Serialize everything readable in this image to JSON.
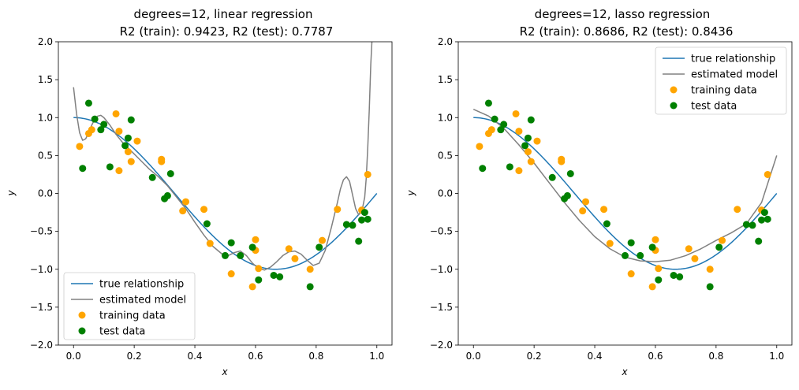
{
  "chart_data": [
    {
      "type": "scatter",
      "title_line1": "degrees=12, linear regression",
      "title_line2": "R2 (train): 0.9423, R2 (test): 0.7787",
      "xlabel": "x",
      "ylabel": "y",
      "xlim": [
        -0.05,
        1.05
      ],
      "ylim": [
        -2.0,
        2.0
      ],
      "xticks": [
        0.0,
        0.2,
        0.4,
        0.6,
        0.8,
        1.0
      ],
      "xtick_labels": [
        "0.0",
        "0.2",
        "0.4",
        "0.6",
        "0.8",
        "1.0"
      ],
      "yticks": [
        -2.0,
        -1.5,
        -1.0,
        -0.5,
        0.0,
        0.5,
        1.0,
        1.5,
        2.0
      ],
      "ytick_labels": [
        "−2.0",
        "−1.5",
        "−1.0",
        "−0.5",
        "0.0",
        "0.5",
        "1.0",
        "1.5",
        "2.0"
      ],
      "legend_position": "lower-left",
      "legend": [
        "true relationship",
        "estimated model",
        "training data",
        "test data"
      ],
      "colors": {
        "true": "#1f77b4",
        "model": "#808080",
        "train": "#ffa500",
        "test": "#008000"
      },
      "model_curve": [
        [
          0.0,
          1.4
        ],
        [
          0.01,
          1.05
        ],
        [
          0.02,
          0.8
        ],
        [
          0.03,
          0.7
        ],
        [
          0.04,
          0.72
        ],
        [
          0.05,
          0.8
        ],
        [
          0.06,
          0.9
        ],
        [
          0.07,
          0.98
        ],
        [
          0.08,
          1.02
        ],
        [
          0.09,
          1.03
        ],
        [
          0.1,
          1.0
        ],
        [
          0.12,
          0.9
        ],
        [
          0.14,
          0.78
        ],
        [
          0.16,
          0.68
        ],
        [
          0.18,
          0.6
        ],
        [
          0.2,
          0.52
        ],
        [
          0.22,
          0.44
        ],
        [
          0.25,
          0.32
        ],
        [
          0.28,
          0.22
        ],
        [
          0.31,
          0.1
        ],
        [
          0.34,
          -0.05
        ],
        [
          0.37,
          -0.2
        ],
        [
          0.4,
          -0.38
        ],
        [
          0.43,
          -0.55
        ],
        [
          0.46,
          -0.7
        ],
        [
          0.49,
          -0.8
        ],
        [
          0.51,
          -0.82
        ],
        [
          0.53,
          -0.78
        ],
        [
          0.55,
          -0.76
        ],
        [
          0.57,
          -0.82
        ],
        [
          0.59,
          -0.92
        ],
        [
          0.61,
          -0.99
        ],
        [
          0.63,
          -1.01
        ],
        [
          0.65,
          -0.97
        ],
        [
          0.67,
          -0.9
        ],
        [
          0.69,
          -0.82
        ],
        [
          0.71,
          -0.77
        ],
        [
          0.73,
          -0.76
        ],
        [
          0.75,
          -0.8
        ],
        [
          0.77,
          -0.88
        ],
        [
          0.79,
          -0.95
        ],
        [
          0.81,
          -0.92
        ],
        [
          0.83,
          -0.75
        ],
        [
          0.85,
          -0.45
        ],
        [
          0.87,
          -0.12
        ],
        [
          0.88,
          0.06
        ],
        [
          0.89,
          0.18
        ],
        [
          0.9,
          0.22
        ],
        [
          0.91,
          0.16
        ],
        [
          0.92,
          -0.02
        ],
        [
          0.93,
          -0.2
        ],
        [
          0.94,
          -0.28
        ],
        [
          0.95,
          -0.25
        ],
        [
          0.96,
          -0.05
        ],
        [
          0.965,
          0.2
        ],
        [
          0.97,
          0.6
        ],
        [
          0.975,
          1.1
        ],
        [
          0.98,
          1.7
        ],
        [
          0.985,
          2.1
        ]
      ],
      "training_data": [
        [
          0.02,
          0.62
        ],
        [
          0.05,
          0.79
        ],
        [
          0.06,
          0.84
        ],
        [
          0.14,
          1.05
        ],
        [
          0.15,
          0.3
        ],
        [
          0.15,
          0.82
        ],
        [
          0.18,
          0.55
        ],
        [
          0.19,
          0.42
        ],
        [
          0.21,
          0.69
        ],
        [
          0.29,
          0.45
        ],
        [
          0.29,
          0.42
        ],
        [
          0.37,
          -0.11
        ],
        [
          0.36,
          -0.23
        ],
        [
          0.43,
          -0.21
        ],
        [
          0.45,
          -0.66
        ],
        [
          0.52,
          -1.06
        ],
        [
          0.59,
          -1.23
        ],
        [
          0.6,
          -0.75
        ],
        [
          0.6,
          -0.61
        ],
        [
          0.61,
          -0.99
        ],
        [
          0.71,
          -0.73
        ],
        [
          0.73,
          -0.86
        ],
        [
          0.78,
          -1.0
        ],
        [
          0.82,
          -0.62
        ],
        [
          0.87,
          -0.21
        ],
        [
          0.95,
          -0.22
        ],
        [
          0.97,
          0.25
        ]
      ],
      "test_data": [
        [
          0.03,
          0.33
        ],
        [
          0.05,
          1.19
        ],
        [
          0.07,
          0.98
        ],
        [
          0.09,
          0.84
        ],
        [
          0.1,
          0.91
        ],
        [
          0.12,
          0.35
        ],
        [
          0.17,
          0.63
        ],
        [
          0.18,
          0.73
        ],
        [
          0.19,
          0.97
        ],
        [
          0.26,
          0.21
        ],
        [
          0.3,
          -0.07
        ],
        [
          0.31,
          -0.03
        ],
        [
          0.32,
          0.26
        ],
        [
          0.44,
          -0.4
        ],
        [
          0.5,
          -0.82
        ],
        [
          0.52,
          -0.65
        ],
        [
          0.55,
          -0.82
        ],
        [
          0.59,
          -0.71
        ],
        [
          0.61,
          -1.14
        ],
        [
          0.66,
          -1.08
        ],
        [
          0.68,
          -1.1
        ],
        [
          0.78,
          -1.23
        ],
        [
          0.81,
          -0.71
        ],
        [
          0.9,
          -0.41
        ],
        [
          0.92,
          -0.42
        ],
        [
          0.94,
          -0.63
        ],
        [
          0.95,
          -0.35
        ],
        [
          0.96,
          -0.25
        ],
        [
          0.97,
          -0.34
        ]
      ]
    },
    {
      "type": "scatter",
      "title_line1": "degrees=12, lasso regression",
      "title_line2": "R2 (train): 0.8686, R2 (test): 0.8436",
      "xlabel": "x",
      "ylabel": "y",
      "xlim": [
        -0.05,
        1.05
      ],
      "ylim": [
        -2.0,
        2.0
      ],
      "xticks": [
        0.0,
        0.2,
        0.4,
        0.6,
        0.8,
        1.0
      ],
      "xtick_labels": [
        "0.0",
        "0.2",
        "0.4",
        "0.6",
        "0.8",
        "1.0"
      ],
      "yticks": [
        -2.0,
        -1.5,
        -1.0,
        -0.5,
        0.0,
        0.5,
        1.0,
        1.5,
        2.0
      ],
      "ytick_labels": [
        "−2.0",
        "−1.5",
        "−1.0",
        "−0.5",
        "0.0",
        "0.5",
        "1.0",
        "1.5",
        "2.0"
      ],
      "legend_position": "upper-right",
      "legend": [
        "true relationship",
        "estimated model",
        "training data",
        "test data"
      ],
      "colors": {
        "true": "#1f77b4",
        "model": "#808080",
        "train": "#ffa500",
        "test": "#008000"
      },
      "model_curve": [
        [
          0.0,
          1.11
        ],
        [
          0.05,
          1.02
        ],
        [
          0.1,
          0.86
        ],
        [
          0.15,
          0.64
        ],
        [
          0.2,
          0.4
        ],
        [
          0.25,
          0.14
        ],
        [
          0.3,
          -0.12
        ],
        [
          0.35,
          -0.36
        ],
        [
          0.4,
          -0.57
        ],
        [
          0.45,
          -0.73
        ],
        [
          0.5,
          -0.84
        ],
        [
          0.55,
          -0.89
        ],
        [
          0.6,
          -0.9
        ],
        [
          0.65,
          -0.88
        ],
        [
          0.7,
          -0.82
        ],
        [
          0.75,
          -0.73
        ],
        [
          0.8,
          -0.62
        ],
        [
          0.85,
          -0.52
        ],
        [
          0.9,
          -0.4
        ],
        [
          0.95,
          -0.12
        ],
        [
          1.0,
          0.5
        ]
      ],
      "training_data": [
        [
          0.02,
          0.62
        ],
        [
          0.05,
          0.79
        ],
        [
          0.06,
          0.84
        ],
        [
          0.14,
          1.05
        ],
        [
          0.15,
          0.3
        ],
        [
          0.15,
          0.82
        ],
        [
          0.18,
          0.55
        ],
        [
          0.19,
          0.42
        ],
        [
          0.21,
          0.69
        ],
        [
          0.29,
          0.45
        ],
        [
          0.29,
          0.42
        ],
        [
          0.37,
          -0.11
        ],
        [
          0.36,
          -0.23
        ],
        [
          0.43,
          -0.21
        ],
        [
          0.45,
          -0.66
        ],
        [
          0.52,
          -1.06
        ],
        [
          0.59,
          -1.23
        ],
        [
          0.6,
          -0.75
        ],
        [
          0.6,
          -0.61
        ],
        [
          0.61,
          -0.99
        ],
        [
          0.71,
          -0.73
        ],
        [
          0.73,
          -0.86
        ],
        [
          0.78,
          -1.0
        ],
        [
          0.82,
          -0.62
        ],
        [
          0.87,
          -0.21
        ],
        [
          0.95,
          -0.22
        ],
        [
          0.97,
          0.25
        ]
      ],
      "test_data": [
        [
          0.03,
          0.33
        ],
        [
          0.05,
          1.19
        ],
        [
          0.07,
          0.98
        ],
        [
          0.09,
          0.84
        ],
        [
          0.1,
          0.91
        ],
        [
          0.12,
          0.35
        ],
        [
          0.17,
          0.63
        ],
        [
          0.18,
          0.73
        ],
        [
          0.19,
          0.97
        ],
        [
          0.26,
          0.21
        ],
        [
          0.3,
          -0.07
        ],
        [
          0.31,
          -0.03
        ],
        [
          0.32,
          0.26
        ],
        [
          0.44,
          -0.4
        ],
        [
          0.5,
          -0.82
        ],
        [
          0.52,
          -0.65
        ],
        [
          0.55,
          -0.82
        ],
        [
          0.59,
          -0.71
        ],
        [
          0.61,
          -1.14
        ],
        [
          0.66,
          -1.08
        ],
        [
          0.68,
          -1.1
        ],
        [
          0.78,
          -1.23
        ],
        [
          0.81,
          -0.71
        ],
        [
          0.9,
          -0.41
        ],
        [
          0.92,
          -0.42
        ],
        [
          0.94,
          -0.63
        ],
        [
          0.95,
          -0.35
        ],
        [
          0.96,
          -0.25
        ],
        [
          0.97,
          -0.34
        ]
      ]
    }
  ]
}
